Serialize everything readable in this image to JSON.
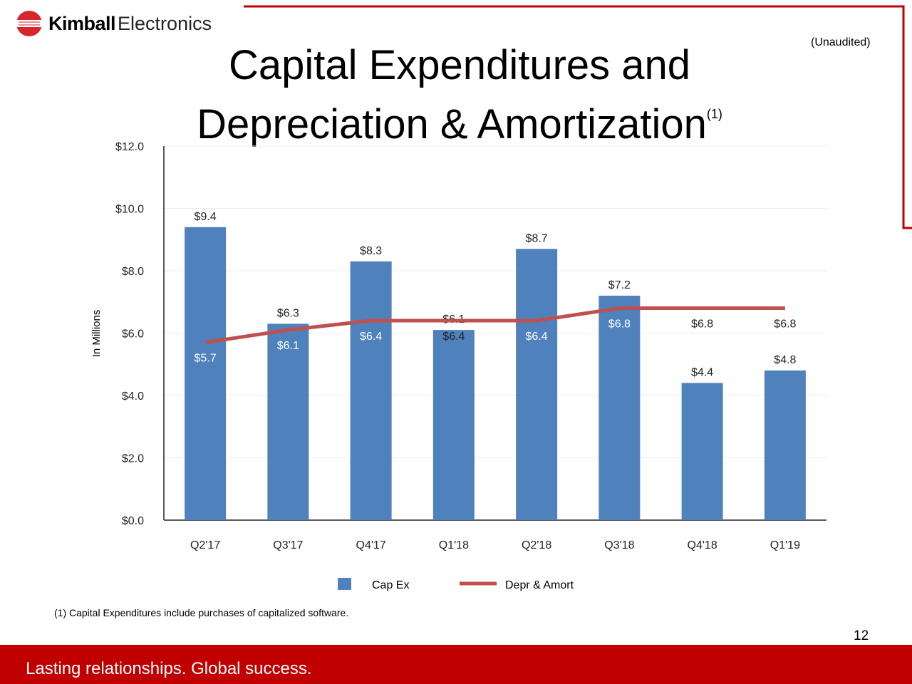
{
  "logo": {
    "brand": "Kimball",
    "sub": "Electronics"
  },
  "header": {
    "title_line1": "Capital Expenditures and",
    "title_line2": "Depreciation & Amortization",
    "title_note": "(1)",
    "unaudited": "(Unaudited)"
  },
  "footnote": "(1)  Capital Expenditures include purchases of capitalized software.",
  "page_number": "12",
  "tagline": "Lasting relationships. Global success.",
  "colors": {
    "bar": "#4f81bd",
    "line": "#c0504d",
    "brand_red": "#c00000"
  },
  "chart_data": {
    "type": "bar+line",
    "categories": [
      "Q2'17",
      "Q3'17",
      "Q4'17",
      "Q1'18",
      "Q2'18",
      "Q3'18",
      "Q4'18",
      "Q1'19"
    ],
    "series": [
      {
        "name": "Cap Ex",
        "type": "bar",
        "values": [
          9.4,
          6.3,
          8.3,
          6.1,
          8.7,
          7.2,
          4.4,
          4.8
        ],
        "labels": [
          "$9.4",
          "$6.3",
          "$8.3",
          "$6.1",
          "$8.7",
          "$7.2",
          "$4.4",
          "$4.8"
        ]
      },
      {
        "name": "Depr & Amort",
        "type": "line",
        "values": [
          5.7,
          6.1,
          6.4,
          6.4,
          6.4,
          6.8,
          6.8,
          6.8
        ],
        "labels": [
          "$5.7",
          "$6.1",
          "$6.4",
          "$6.4",
          "$6.4",
          "$6.8",
          "$6.8",
          "$6.8"
        ]
      }
    ],
    "ylabel": "In Millions",
    "ylim": [
      0,
      12
    ],
    "yticks": [
      "$0.0",
      "$2.0",
      "$4.0",
      "$6.0",
      "$8.0",
      "$10.0",
      "$12.0"
    ],
    "grid": true,
    "legend": "bottom"
  }
}
